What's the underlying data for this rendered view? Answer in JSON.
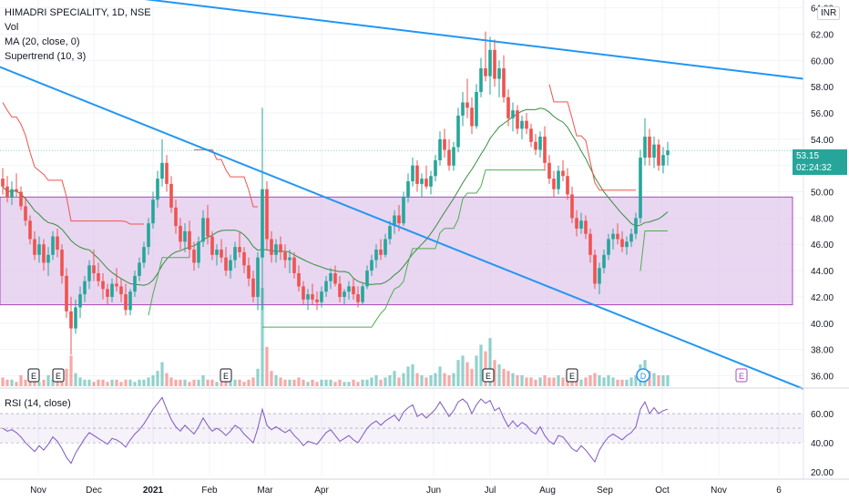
{
  "chart_data": {
    "type": "candlestick",
    "symbol_line": "HIMADRI SPECIALITY, 1D, NSE",
    "indicators": [
      "Vol",
      "MA (20, close, 0)",
      "Supertrend (10, 3)"
    ],
    "rsi_label": "RSI (14, close)",
    "currency": "INR",
    "last_price": "53.15",
    "countdown": "02:24:32",
    "price_ticks": [
      "36.00",
      "38.00",
      "40.00",
      "42.00",
      "44.00",
      "46.00",
      "48.00",
      "50.00",
      "52.00",
      "54.00",
      "56.00",
      "58.00",
      "60.00",
      "62.00",
      "64.00"
    ],
    "price_range": [
      35.2,
      64.6
    ],
    "rsi_ticks": [
      "20.00",
      "40.00",
      "60.00"
    ],
    "rsi_range": [
      17,
      75
    ],
    "rsi_band": [
      40,
      60
    ],
    "time_labels": [
      "Nov",
      "Dec",
      "2021",
      "Feb",
      "Mar",
      "Apr",
      "Jun",
      "Jul",
      "Aug",
      "Sep",
      "Oct",
      "Nov",
      "6"
    ],
    "support_resistance_zone": [
      41.4,
      49.6
    ],
    "event_markers": [
      {
        "letter": "E",
        "type": "earnings"
      },
      {
        "letter": "E",
        "type": "earnings"
      },
      {
        "letter": "E",
        "type": "earnings"
      },
      {
        "letter": "E",
        "type": "earnings"
      },
      {
        "letter": "E",
        "type": "earnings"
      },
      {
        "letter": "D",
        "type": "dividend"
      },
      {
        "letter": "E",
        "type": "earnings-upcoming"
      }
    ],
    "trendlines": [
      {
        "name": "upper",
        "from": 66.0,
        "to": 58.6
      },
      {
        "name": "lower",
        "from": 59.5,
        "to": 35.0
      }
    ],
    "colors": {
      "up": "#26a69a",
      "down": "#ef5350",
      "ma": "#388e3c",
      "supertrend_down": "#ef5350",
      "supertrend_up": "#4caf50",
      "trendline": "#2196f3",
      "zone_fill": "#e1c8ec",
      "zone_stroke": "#ab47bc",
      "rsi": "#7e57c2",
      "grid": "#f0f3fa",
      "axis_text": "#131722"
    },
    "candles": [
      [
        51.0,
        51.8,
        49.8,
        50.4
      ],
      [
        50.4,
        51.2,
        49.2,
        49.6
      ],
      [
        49.6,
        50.8,
        49.0,
        50.2
      ],
      [
        50.2,
        51.4,
        49.6,
        50.0
      ],
      [
        50.0,
        50.4,
        48.6,
        48.9
      ],
      [
        48.9,
        49.6,
        47.4,
        47.8
      ],
      [
        47.8,
        48.2,
        46.0,
        46.4
      ],
      [
        46.4,
        47.0,
        44.8,
        45.2
      ],
      [
        45.2,
        46.6,
        44.6,
        46.0
      ],
      [
        46.0,
        46.4,
        44.0,
        44.6
      ],
      [
        44.6,
        45.8,
        43.6,
        45.2
      ],
      [
        45.2,
        47.0,
        44.8,
        46.6
      ],
      [
        46.6,
        47.2,
        45.0,
        45.6
      ],
      [
        45.6,
        46.0,
        43.0,
        43.6
      ],
      [
        43.6,
        44.2,
        40.4,
        40.9
      ],
      [
        40.9,
        42.0,
        37.6,
        39.6
      ],
      [
        39.6,
        41.8,
        39.2,
        41.2
      ],
      [
        41.2,
        42.8,
        40.4,
        42.2
      ],
      [
        42.2,
        43.6,
        41.6,
        43.2
      ],
      [
        43.2,
        44.8,
        42.6,
        44.4
      ],
      [
        44.4,
        45.6,
        43.2,
        43.8
      ],
      [
        43.8,
        44.6,
        42.8,
        43.2
      ],
      [
        43.2,
        43.8,
        41.8,
        42.6
      ],
      [
        42.6,
        43.0,
        41.4,
        42.0
      ],
      [
        42.0,
        43.4,
        41.6,
        43.0
      ],
      [
        43.0,
        44.2,
        42.4,
        42.8
      ],
      [
        42.8,
        43.4,
        41.6,
        42.2
      ],
      [
        42.2,
        43.0,
        40.6,
        41.0
      ],
      [
        41.0,
        42.6,
        40.6,
        42.4
      ],
      [
        42.4,
        44.0,
        42.0,
        43.6
      ],
      [
        43.6,
        45.0,
        43.2,
        44.6
      ],
      [
        44.6,
        46.2,
        44.2,
        45.8
      ],
      [
        45.8,
        48.0,
        45.2,
        47.6
      ],
      [
        47.6,
        50.0,
        47.2,
        49.4
      ],
      [
        49.4,
        51.6,
        48.8,
        51.0
      ],
      [
        51.0,
        54.0,
        50.4,
        52.2
      ],
      [
        52.2,
        52.8,
        50.0,
        50.6
      ],
      [
        50.6,
        51.2,
        48.4,
        48.8
      ],
      [
        48.8,
        49.4,
        46.8,
        47.4
      ],
      [
        47.4,
        48.0,
        45.6,
        46.2
      ],
      [
        46.2,
        47.6,
        45.4,
        47.0
      ],
      [
        47.0,
        47.8,
        45.0,
        45.6
      ],
      [
        45.6,
        46.2,
        44.0,
        44.6
      ],
      [
        44.6,
        46.6,
        44.2,
        46.2
      ],
      [
        46.2,
        48.6,
        45.8,
        48.0
      ],
      [
        48.0,
        49.0,
        46.0,
        46.6
      ],
      [
        46.6,
        47.0,
        44.8,
        45.2
      ],
      [
        45.2,
        46.0,
        44.4,
        45.6
      ],
      [
        45.6,
        46.4,
        44.6,
        45.0
      ],
      [
        45.0,
        45.8,
        43.6,
        44.0
      ],
      [
        44.0,
        45.2,
        43.4,
        44.8
      ],
      [
        44.8,
        46.2,
        44.2,
        45.8
      ],
      [
        45.8,
        47.0,
        45.0,
        45.4
      ],
      [
        45.4,
        45.8,
        43.8,
        44.4
      ],
      [
        44.4,
        45.0,
        42.8,
        43.4
      ],
      [
        43.4,
        44.0,
        41.6,
        42.0
      ],
      [
        42.0,
        45.4,
        41.0,
        45.0
      ],
      [
        45.0,
        56.4,
        41.0,
        50.2
      ],
      [
        50.2,
        50.8,
        45.6,
        46.4
      ],
      [
        46.4,
        47.0,
        44.6,
        45.2
      ],
      [
        45.2,
        46.4,
        44.6,
        46.0
      ],
      [
        46.0,
        46.6,
        44.8,
        45.4
      ],
      [
        45.4,
        46.0,
        44.2,
        44.8
      ],
      [
        44.8,
        45.6,
        43.8,
        45.0
      ],
      [
        45.0,
        45.4,
        43.4,
        43.8
      ],
      [
        43.8,
        44.4,
        42.4,
        42.8
      ],
      [
        42.8,
        43.2,
        41.4,
        41.8
      ],
      [
        41.8,
        42.6,
        41.0,
        42.2
      ],
      [
        42.2,
        43.0,
        41.4,
        41.8
      ],
      [
        41.8,
        42.4,
        41.0,
        41.6
      ],
      [
        41.6,
        42.8,
        41.2,
        42.4
      ],
      [
        42.4,
        43.6,
        42.0,
        43.2
      ],
      [
        43.2,
        44.2,
        42.6,
        43.8
      ],
      [
        43.8,
        44.4,
        42.8,
        43.0
      ],
      [
        43.0,
        43.6,
        41.6,
        42.0
      ],
      [
        42.0,
        42.6,
        41.4,
        42.4
      ],
      [
        42.4,
        43.2,
        41.8,
        42.8
      ],
      [
        42.8,
        43.4,
        41.8,
        42.2
      ],
      [
        42.2,
        42.8,
        41.2,
        41.6
      ],
      [
        41.6,
        43.0,
        41.4,
        42.8
      ],
      [
        42.8,
        44.4,
        42.6,
        44.0
      ],
      [
        44.0,
        45.2,
        43.6,
        44.8
      ],
      [
        44.8,
        46.0,
        44.2,
        45.6
      ],
      [
        45.6,
        46.4,
        44.8,
        45.2
      ],
      [
        45.2,
        46.8,
        45.0,
        46.4
      ],
      [
        46.4,
        47.8,
        46.0,
        47.4
      ],
      [
        47.4,
        48.6,
        46.8,
        48.2
      ],
      [
        48.2,
        49.0,
        47.0,
        47.6
      ],
      [
        47.6,
        50.0,
        47.4,
        49.6
      ],
      [
        49.6,
        51.4,
        49.2,
        50.8
      ],
      [
        50.8,
        52.6,
        50.4,
        52.0
      ],
      [
        52.0,
        52.4,
        50.0,
        50.6
      ],
      [
        50.6,
        51.4,
        49.6,
        51.0
      ],
      [
        51.0,
        52.0,
        50.2,
        50.4
      ],
      [
        50.4,
        51.6,
        49.8,
        51.2
      ],
      [
        51.2,
        52.8,
        50.8,
        52.4
      ],
      [
        52.4,
        54.6,
        52.0,
        54.0
      ],
      [
        54.0,
        54.8,
        52.6,
        53.2
      ],
      [
        53.2,
        54.0,
        51.6,
        52.0
      ],
      [
        52.0,
        53.8,
        51.6,
        53.4
      ],
      [
        53.4,
        56.4,
        53.0,
        55.8
      ],
      [
        55.8,
        57.6,
        55.0,
        56.8
      ],
      [
        56.8,
        58.6,
        55.6,
        56.4
      ],
      [
        56.4,
        57.2,
        54.4,
        55.0
      ],
      [
        55.0,
        58.2,
        54.8,
        57.6
      ],
      [
        57.6,
        60.2,
        57.2,
        59.4
      ],
      [
        59.4,
        62.2,
        58.4,
        58.8
      ],
      [
        58.8,
        61.8,
        57.4,
        60.8
      ],
      [
        60.8,
        61.6,
        58.0,
        58.6
      ],
      [
        58.6,
        60.0,
        57.2,
        59.4
      ],
      [
        59.4,
        60.4,
        56.8,
        57.2
      ],
      [
        57.2,
        57.8,
        55.0,
        55.6
      ],
      [
        55.6,
        56.8,
        54.6,
        56.2
      ],
      [
        56.2,
        56.6,
        54.4,
        54.8
      ],
      [
        54.8,
        55.8,
        54.0,
        55.4
      ],
      [
        55.4,
        56.0,
        54.4,
        54.8
      ],
      [
        54.8,
        55.2,
        53.4,
        53.8
      ],
      [
        53.8,
        54.4,
        52.8,
        53.2
      ],
      [
        53.2,
        54.6,
        52.6,
        54.2
      ],
      [
        54.2,
        55.0,
        51.6,
        52.2
      ],
      [
        52.2,
        52.8,
        50.6,
        51.0
      ],
      [
        51.0,
        51.6,
        49.6,
        50.2
      ],
      [
        50.2,
        52.0,
        49.8,
        51.6
      ],
      [
        51.6,
        52.4,
        50.8,
        51.2
      ],
      [
        51.2,
        51.8,
        49.4,
        49.8
      ],
      [
        49.8,
        50.4,
        47.6,
        48.0
      ],
      [
        48.0,
        48.6,
        46.6,
        47.2
      ],
      [
        47.2,
        48.4,
        46.8,
        47.8
      ],
      [
        47.8,
        48.2,
        46.4,
        46.8
      ],
      [
        46.8,
        47.2,
        44.6,
        45.2
      ],
      [
        45.2,
        45.6,
        42.6,
        43.0
      ],
      [
        43.0,
        44.6,
        42.2,
        44.2
      ],
      [
        44.2,
        45.6,
        43.8,
        45.2
      ],
      [
        45.2,
        46.8,
        44.8,
        46.4
      ],
      [
        46.4,
        47.2,
        45.6,
        46.8
      ],
      [
        46.8,
        47.6,
        46.0,
        46.4
      ],
      [
        46.4,
        47.0,
        45.4,
        45.8
      ],
      [
        45.8,
        46.6,
        45.2,
        46.2
      ],
      [
        46.2,
        47.2,
        45.8,
        46.8
      ],
      [
        46.8,
        48.4,
        46.4,
        48.0
      ],
      [
        48.0,
        53.2,
        47.6,
        52.6
      ],
      [
        52.6,
        55.6,
        52.0,
        54.2
      ],
      [
        54.2,
        54.8,
        52.0,
        52.6
      ],
      [
        52.6,
        54.2,
        51.8,
        53.6
      ],
      [
        53.6,
        54.0,
        51.6,
        52.0
      ],
      [
        52.0,
        53.4,
        51.4,
        52.8
      ],
      [
        52.8,
        53.8,
        52.0,
        53.15
      ]
    ],
    "volume": [
      4,
      3,
      3,
      2,
      5,
      3,
      4,
      3,
      2,
      3,
      5,
      3,
      2,
      4,
      8,
      14,
      6,
      4,
      3,
      3,
      2,
      3,
      3,
      2,
      3,
      3,
      2,
      3,
      3,
      2,
      3,
      3,
      4,
      5,
      7,
      11,
      6,
      4,
      3,
      3,
      3,
      2,
      3,
      3,
      5,
      3,
      3,
      2,
      2,
      3,
      2,
      3,
      3,
      2,
      3,
      4,
      8,
      45,
      18,
      7,
      5,
      4,
      3,
      3,
      3,
      4,
      3,
      2,
      3,
      2,
      3,
      3,
      3,
      2,
      3,
      2,
      2,
      3,
      2,
      3,
      3,
      4,
      5,
      3,
      4,
      5,
      7,
      4,
      6,
      9,
      10,
      6,
      5,
      4,
      5,
      6,
      9,
      6,
      5,
      6,
      12,
      14,
      11,
      8,
      14,
      19,
      16,
      22,
      12,
      10,
      8,
      7,
      6,
      5,
      5,
      4,
      4,
      3,
      4,
      5,
      4,
      4,
      5,
      4,
      4,
      5,
      4,
      3,
      4,
      5,
      6,
      5,
      4,
      5,
      4,
      3,
      3,
      3,
      4,
      5,
      10,
      12,
      7,
      6,
      5,
      5,
      5
    ],
    "rsi": [
      50,
      48,
      49,
      47,
      44,
      40,
      37,
      34,
      38,
      35,
      39,
      44,
      41,
      36,
      30,
      26,
      33,
      38,
      43,
      47,
      45,
      43,
      41,
      39,
      43,
      42,
      40,
      37,
      42,
      46,
      49,
      53,
      58,
      63,
      67,
      71,
      63,
      56,
      51,
      48,
      52,
      49,
      46,
      51,
      57,
      52,
      48,
      50,
      48,
      45,
      48,
      52,
      50,
      46,
      43,
      40,
      50,
      63,
      52,
      49,
      51,
      49,
      47,
      49,
      45,
      42,
      38,
      41,
      40,
      39,
      43,
      47,
      49,
      45,
      41,
      43,
      45,
      42,
      40,
      45,
      50,
      53,
      55,
      52,
      55,
      57,
      59,
      55,
      61,
      64,
      66,
      58,
      60,
      57,
      60,
      63,
      68,
      63,
      58,
      62,
      68,
      70,
      67,
      60,
      66,
      70,
      67,
      69,
      62,
      64,
      57,
      51,
      55,
      51,
      54,
      52,
      48,
      46,
      51,
      45,
      41,
      39,
      45,
      44,
      40,
      36,
      34,
      38,
      35,
      31,
      27,
      35,
      40,
      44,
      46,
      44,
      42,
      45,
      47,
      51,
      63,
      68,
      60,
      64,
      60,
      62,
      63
    ]
  }
}
